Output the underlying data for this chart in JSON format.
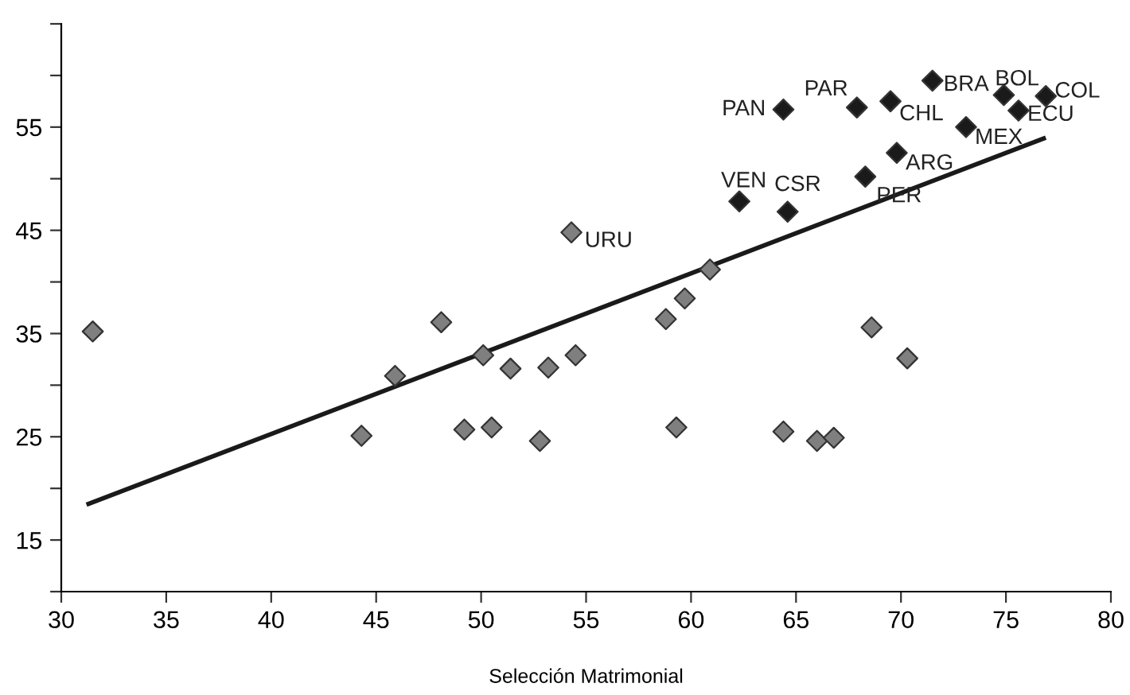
{
  "chart_data": {
    "type": "scatter",
    "xlabel": "Selección Matrimonial",
    "marker": "diamond",
    "grid": false,
    "legend": false,
    "xlim": [
      30,
      80
    ],
    "xticks": [
      30,
      35,
      40,
      45,
      50,
      55,
      60,
      65,
      70,
      75,
      80
    ],
    "ylim": [
      10,
      65
    ],
    "yticks": [
      {
        "value": 10,
        "label": null
      },
      15,
      {
        "value": 20,
        "label": null
      },
      25,
      {
        "value": 30,
        "label": null
      },
      35,
      {
        "value": 40,
        "label": null
      },
      45,
      {
        "value": 50,
        "label": null
      },
      55,
      {
        "value": 60,
        "label": null
      },
      {
        "value": 65,
        "label": null
      }
    ],
    "series": [
      {
        "color": "#7f7f7f",
        "x": [
          31.5,
          44.3,
          45.9,
          48.1,
          49.2,
          50.1,
          50.5,
          51.4,
          52.8,
          53.2,
          54.5,
          54.3,
          58.8,
          59.7,
          60.9,
          59.3,
          64.4,
          66.0,
          66.8,
          68.6,
          70.3
        ],
        "values": [
          35.2,
          25.1,
          30.9,
          36.1,
          25.7,
          32.9,
          25.9,
          31.6,
          24.6,
          31.7,
          32.9,
          44.8,
          36.4,
          38.4,
          41.2,
          25.9,
          25.5,
          24.6,
          24.9,
          35.6,
          32.6
        ]
      },
      {
        "color": "#1a1a1a",
        "x": [
          64.4,
          67.9,
          69.5,
          71.5,
          74.9,
          76.9,
          75.6,
          73.1,
          69.8,
          68.3,
          62.3,
          64.6
        ],
        "values": [
          56.7,
          56.9,
          57.5,
          59.5,
          58.1,
          58.0,
          56.6,
          55.0,
          52.5,
          50.2,
          47.8,
          46.8
        ]
      },
      {
        "type": "line",
        "color": "#1a1a1a",
        "marker": "none",
        "line_style": "solid",
        "x": [
          31.3,
          76.8
        ],
        "values": [
          18.5,
          53.9
        ]
      }
    ],
    "annotations": [
      {
        "text": "URU",
        "x": 54.3,
        "y": 44.8
      },
      {
        "text": "PAN",
        "x": 64.4,
        "y": 56.7
      },
      {
        "text": "PAR",
        "x": 67.9,
        "y": 56.9
      },
      {
        "text": "CHL",
        "x": 69.5,
        "y": 57.5
      },
      {
        "text": "BRA",
        "x": 71.5,
        "y": 59.5
      },
      {
        "text": "BOL",
        "x": 74.9,
        "y": 58.1
      },
      {
        "text": "COL",
        "x": 76.9,
        "y": 58.0
      },
      {
        "text": "ECU",
        "x": 75.6,
        "y": 56.6
      },
      {
        "text": "MEX",
        "x": 73.1,
        "y": 55.0
      },
      {
        "text": "ARG",
        "x": 69.8,
        "y": 52.5
      },
      {
        "text": "PER",
        "x": 68.3,
        "y": 50.2
      },
      {
        "text": "VEN",
        "x": 62.3,
        "y": 47.8
      },
      {
        "text": "CSR",
        "x": 64.6,
        "y": 46.8
      }
    ]
  }
}
